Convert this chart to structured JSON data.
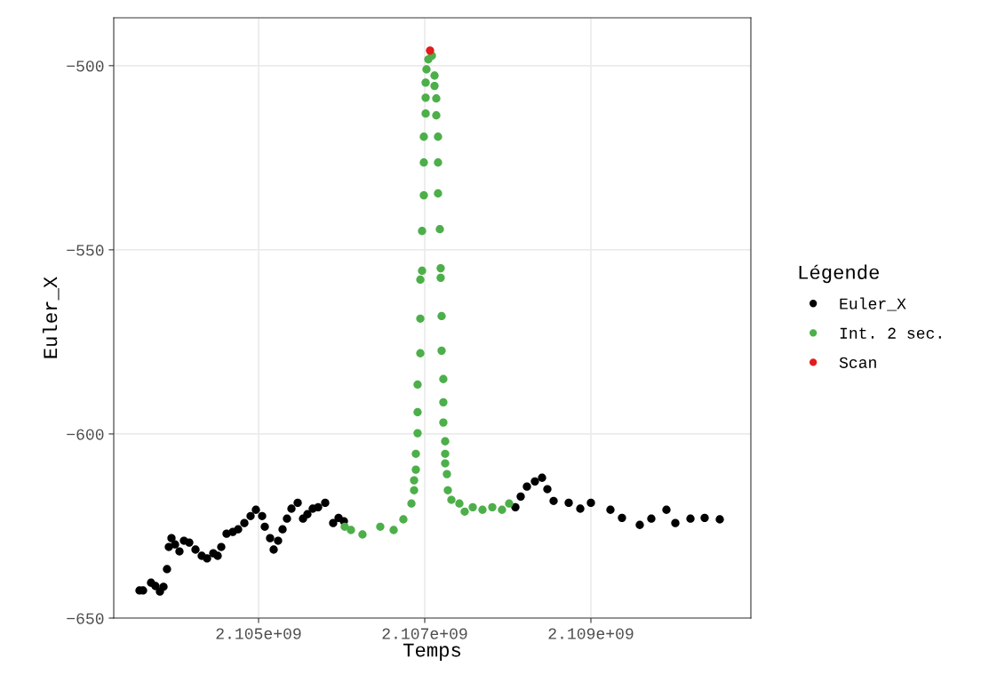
{
  "chart_data": {
    "type": "scatter",
    "xlabel": "Temps",
    "ylabel": "Euler_X",
    "legend_title": "Légende",
    "legend": "right",
    "grid": true,
    "marker": "circle",
    "xlim": [
      2103257000,
      2110925000
    ],
    "ylim": [
      -650,
      -487
    ],
    "xticks": [
      {
        "value": 2105000000,
        "label": "2.105e+09"
      },
      {
        "value": 2107000000,
        "label": "2.107e+09"
      },
      {
        "value": 2109000000,
        "label": "2.109e+09"
      }
    ],
    "yticks": [
      -650,
      -600,
      -550,
      -500
    ],
    "series": [
      {
        "name": "Euler_X",
        "color": "#000000",
        "x": [
          2103567000,
          2103610000,
          2103706000,
          2103759000,
          2103813000,
          2103856000,
          2103898000,
          2103920000,
          2103952000,
          2103995000,
          2104048000,
          2104102000,
          2104166000,
          2104241000,
          2104316000,
          2104380000,
          2104455000,
          2104508000,
          2104551000,
          2104615000,
          2104690000,
          2104754000,
          2104829000,
          2104904000,
          2104968000,
          2105043000,
          2105075000,
          2105139000,
          2105182000,
          2105235000,
          2105289000,
          2105342000,
          2105396000,
          2105471000,
          2105535000,
          2105588000,
          2105652000,
          2105717000,
          2105802000,
          2105898000,
          2105963000,
          2106027000,
          2108091000,
          2108155000,
          2108230000,
          2108326000,
          2108412000,
          2108476000,
          2108551000,
          2108733000,
          2108872000,
          2109000000,
          2109235000,
          2109374000,
          2109588000,
          2109727000,
          2109909000,
          2110016000,
          2110198000,
          2110369000,
          2110551000
        ],
        "values": [
          -642.5,
          -642.5,
          -640.4,
          -641.3,
          -642.8,
          -641.5,
          -636.7,
          -630.7,
          -628.3,
          -630.0,
          -631.9,
          -629.0,
          -629.5,
          -631.4,
          -633.1,
          -633.8,
          -632.4,
          -633.1,
          -630.7,
          -627.1,
          -626.6,
          -625.9,
          -624.2,
          -622.3,
          -620.6,
          -622.3,
          -625.2,
          -628.3,
          -631.4,
          -629.0,
          -625.9,
          -623.0,
          -620.3,
          -618.7,
          -623.0,
          -621.8,
          -620.3,
          -619.9,
          -618.7,
          -624.2,
          -622.8,
          -623.7,
          -619.9,
          -617.0,
          -614.3,
          -612.9,
          -611.9,
          -615.0,
          -618.2,
          -618.7,
          -620.3,
          -618.7,
          -620.6,
          -622.8,
          -624.7,
          -623.0,
          -620.6,
          -624.2,
          -623.0,
          -622.8,
          -623.2
        ]
      },
      {
        "name": "Int. 2 sec.",
        "color": "#4daf4a",
        "x": [
          2106037000,
          2106112000,
          2106251000,
          2106465000,
          2106626000,
          2106743000,
          2106840000,
          2106872000,
          2106872000,
          2106893000,
          2106893000,
          2106914000,
          2106914000,
          2106914000,
          2106947000,
          2106947000,
          2106947000,
          2106968000,
          2106968000,
          2106989000,
          2106989000,
          2106989000,
          2107011000,
          2107011000,
          2107011000,
          2107021000,
          2107043000,
          2107086000,
          2107118000,
          2107118000,
          2107139000,
          2107139000,
          2107160000,
          2107160000,
          2107160000,
          2107182000,
          2107192000,
          2107192000,
          2107203000,
          2107203000,
          2107224000,
          2107224000,
          2107224000,
          2107246000,
          2107246000,
          2107246000,
          2107267000,
          2107278000,
          2107321000,
          2107417000,
          2107481000,
          2107578000,
          2107695000,
          2107813000,
          2107930000,
          2108016000
        ],
        "values": [
          -625.2,
          -626.1,
          -627.3,
          -625.2,
          -626.1,
          -623.2,
          -618.9,
          -615.3,
          -612.6,
          -609.7,
          -605.4,
          -599.8,
          -594.1,
          -586.6,
          -578.1,
          -568.7,
          -558.1,
          -555.7,
          -544.9,
          -535.2,
          -526.3,
          -519.3,
          -513.0,
          -508.7,
          -504.6,
          -501.0,
          -498.3,
          -497.3,
          -502.7,
          -505.5,
          -508.9,
          -513.5,
          -519.3,
          -526.3,
          -534.7,
          -544.4,
          -555.0,
          -557.6,
          -568.0,
          -577.4,
          -585.1,
          -591.4,
          -596.9,
          -602.0,
          -605.4,
          -608.0,
          -610.9,
          -615.3,
          -617.9,
          -618.9,
          -621.1,
          -619.9,
          -620.6,
          -619.9,
          -620.6,
          -618.9
        ]
      },
      {
        "name": "Scan",
        "color": "#e41a1c",
        "x": [
          2107064000
        ],
        "values": [
          -495.9
        ]
      }
    ]
  }
}
